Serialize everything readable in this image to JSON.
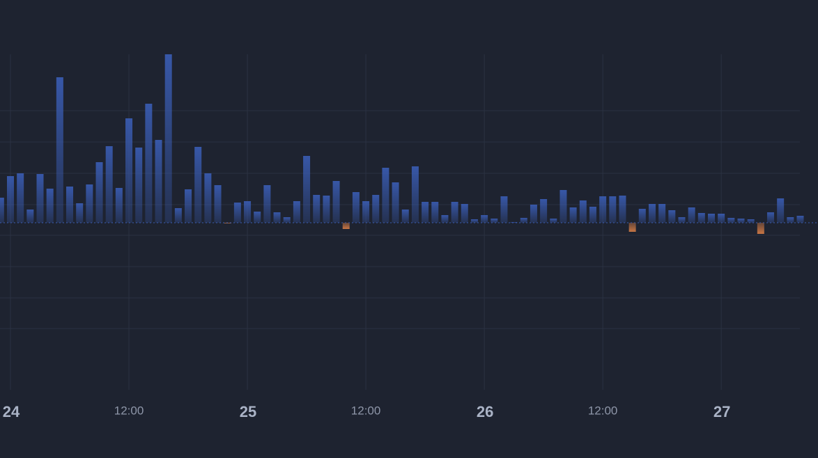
{
  "chart_data": {
    "type": "bar",
    "x": [
      -1,
      0,
      1,
      2,
      3,
      4,
      5,
      6,
      7,
      8,
      9,
      10,
      11,
      12,
      13,
      14,
      15,
      16,
      17,
      18,
      19,
      20,
      21,
      22,
      23,
      24,
      25,
      26,
      27,
      28,
      29,
      30,
      31,
      32,
      33,
      34,
      35,
      36,
      37,
      38,
      39,
      40,
      41,
      42,
      43,
      44,
      45,
      46,
      47,
      48,
      49,
      50,
      51,
      52,
      53,
      54,
      55,
      56,
      57,
      58,
      59,
      60,
      61,
      62,
      63,
      64,
      65,
      66,
      67,
      68,
      69,
      70,
      71,
      72,
      73,
      74,
      75,
      76,
      77,
      78,
      79,
      80
    ],
    "values": [
      36,
      67,
      71,
      19,
      70,
      49,
      209,
      52,
      28,
      55,
      87,
      110,
      50,
      150,
      108,
      171,
      119,
      242,
      21,
      48,
      109,
      71,
      54,
      -1,
      29,
      31,
      16,
      54,
      15,
      8,
      31,
      96,
      40,
      39,
      60,
      -9,
      44,
      31,
      40,
      79,
      58,
      19,
      81,
      30,
      30,
      11,
      30,
      27,
      5,
      11,
      6,
      38,
      1,
      7,
      26,
      34,
      6,
      47,
      22,
      32,
      23,
      38,
      38,
      39,
      -13,
      20,
      27,
      27,
      18,
      8,
      22,
      14,
      13,
      13,
      7,
      6,
      5,
      -16,
      15,
      35,
      8,
      10
    ],
    "color": "#3557a8",
    "negative_color": "#c8703e",
    "xlim": [
      -1.0588,
      81.8
    ],
    "ylim": [
      -240,
      242
    ],
    "xticks": [
      {
        "value": 0,
        "label": "24"
      },
      {
        "value": 12,
        "label": "12:00"
      },
      {
        "value": 24,
        "label": "25"
      },
      {
        "value": 36,
        "label": "12:00"
      },
      {
        "value": 48,
        "label": "26"
      },
      {
        "value": 60,
        "label": "12:00"
      },
      {
        "value": 72,
        "label": "27"
      }
    ],
    "grid": true
  }
}
